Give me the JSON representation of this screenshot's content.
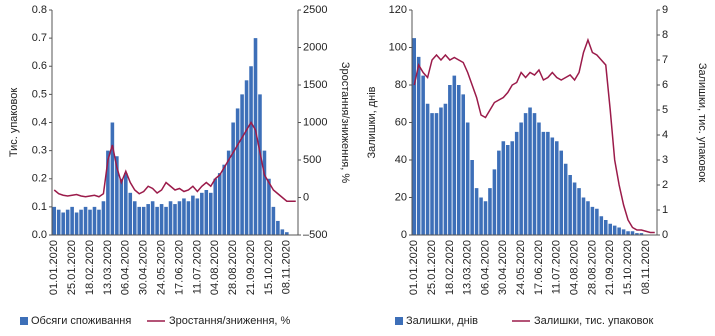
{
  "chart_data": [
    {
      "type": "bar-line",
      "categories": [
        "01.01.2020",
        null,
        null,
        null,
        "25.01.2020",
        null,
        null,
        null,
        "18.02.2020",
        null,
        null,
        null,
        "13.03.2020",
        null,
        null,
        null,
        "06.04.2020",
        null,
        null,
        null,
        "30.04.2020",
        null,
        null,
        null,
        "24.05.2020",
        null,
        null,
        null,
        "17.06.2020",
        null,
        null,
        null,
        "11.07.2020",
        null,
        null,
        null,
        "04.08.2020",
        null,
        null,
        null,
        "28.08.2020",
        null,
        null,
        null,
        "21.09.2020",
        null,
        null,
        null,
        "15.10.2020",
        null,
        null,
        null,
        "08.11.2020",
        null,
        null
      ],
      "ylabel": "Тис. упаковок",
      "y2label": "Зростання/зниження, %",
      "ylim": [
        0,
        0.8
      ],
      "yticks": [
        {
          "value": 0,
          "label": "0.0"
        },
        0.1,
        0.2,
        0.3,
        0.4,
        0.5,
        0.6,
        0.7,
        0.8
      ],
      "y2lim": [
        -500,
        2500
      ],
      "y2ticks": [
        {
          "value": -500,
          "label": "–500"
        },
        0,
        500,
        1000,
        1500,
        2000,
        2500
      ],
      "series": [
        {
          "name": "Обсяги споживання",
          "type": "bar",
          "color": "#3d6fb8",
          "values": [
            0.1,
            0.09,
            0.08,
            0.09,
            0.1,
            0.08,
            0.09,
            0.1,
            0.09,
            0.1,
            0.09,
            0.12,
            0.3,
            0.4,
            0.28,
            0.2,
            0.22,
            0.15,
            0.12,
            0.1,
            0.1,
            0.11,
            0.12,
            0.1,
            0.11,
            0.1,
            0.12,
            0.11,
            0.12,
            0.13,
            0.12,
            0.14,
            0.13,
            0.15,
            0.16,
            0.15,
            0.2,
            0.22,
            0.25,
            0.3,
            0.4,
            0.45,
            0.5,
            0.55,
            0.6,
            0.7,
            0.5,
            0.3,
            0.2,
            0.1,
            0.05,
            0.02,
            0.01,
            0,
            0
          ]
        },
        {
          "name": "Зростання/зниження, %",
          "type": "line",
          "axis": "y2",
          "color": "#9b1b4a",
          "values": [
            100,
            50,
            30,
            20,
            30,
            40,
            20,
            10,
            20,
            30,
            10,
            50,
            500,
            700,
            400,
            200,
            350,
            200,
            100,
            50,
            80,
            150,
            120,
            60,
            100,
            200,
            150,
            100,
            120,
            80,
            100,
            150,
            80,
            150,
            200,
            150,
            250,
            300,
            400,
            500,
            600,
            700,
            800,
            900,
            1000,
            900,
            600,
            300,
            200,
            100,
            50,
            0,
            -50,
            -50,
            -50
          ]
        }
      ]
    },
    {
      "type": "bar-line",
      "categories": [
        "01.01.2020",
        null,
        null,
        null,
        "25.01.2020",
        null,
        null,
        null,
        "18.02.2020",
        null,
        null,
        null,
        "13.03.2020",
        null,
        null,
        null,
        "06.04.2020",
        null,
        null,
        null,
        "30.04.2020",
        null,
        null,
        null,
        "24.05.2020",
        null,
        null,
        null,
        "17.06.2020",
        null,
        null,
        null,
        "11.07.2020",
        null,
        null,
        null,
        "04.08.2020",
        null,
        null,
        null,
        "28.08.2020",
        null,
        null,
        null,
        "21.09.2020",
        null,
        null,
        null,
        "15.10.2020",
        null,
        null,
        null,
        "08.11.2020",
        null,
        null
      ],
      "ylabel": "Залишки, днів",
      "y2label": "Залишки, тис. упаковок",
      "ylim": [
        0,
        120
      ],
      "yticks": [
        0,
        20,
        40,
        60,
        80,
        100,
        120
      ],
      "y2lim": [
        0,
        9
      ],
      "y2ticks": [
        0,
        1,
        2,
        3,
        4,
        5,
        6,
        7,
        8,
        9
      ],
      "series": [
        {
          "name": "Залишки, днів",
          "type": "bar",
          "color": "#3d6fb8",
          "values": [
            105,
            95,
            85,
            70,
            65,
            65,
            68,
            70,
            80,
            85,
            80,
            75,
            60,
            40,
            25,
            20,
            18,
            25,
            35,
            45,
            50,
            48,
            50,
            55,
            60,
            65,
            68,
            65,
            60,
            55,
            55,
            52,
            50,
            45,
            38,
            32,
            28,
            25,
            20,
            18,
            15,
            14,
            10,
            8,
            6,
            5,
            4,
            3,
            2,
            2,
            1,
            1,
            0,
            0,
            0
          ]
        },
        {
          "name": "Залишки, тис. упаковок",
          "type": "line",
          "axis": "y2",
          "color": "#9b1b4a",
          "values": [
            6,
            6.8,
            6.5,
            6.3,
            7,
            7.2,
            7,
            7.2,
            7,
            7.1,
            7,
            6.9,
            6.5,
            6,
            5.5,
            4.8,
            4.7,
            5,
            5.3,
            5.4,
            5.5,
            5.7,
            6,
            6.1,
            6.5,
            6.3,
            6.5,
            6.4,
            6.6,
            6.2,
            6.3,
            6.5,
            6.3,
            6.2,
            6.3,
            6.4,
            6.2,
            6.5,
            7.3,
            7.8,
            7.3,
            7.2,
            7,
            6.8,
            5,
            3,
            2,
            1.2,
            0.6,
            0.3,
            0.2,
            0.2,
            0.15,
            0.1,
            0.1
          ]
        }
      ]
    }
  ]
}
